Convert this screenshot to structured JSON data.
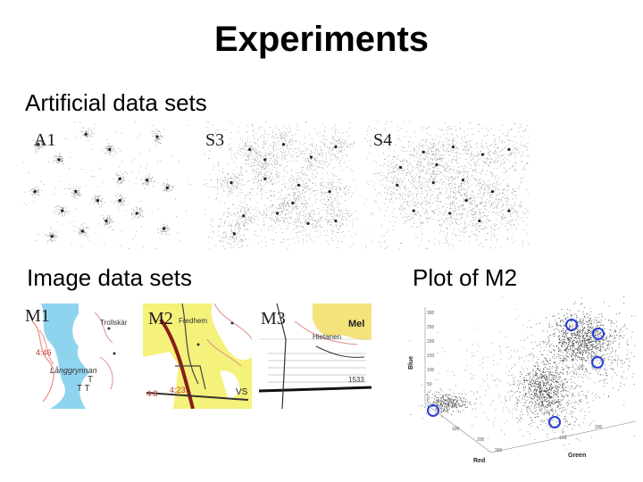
{
  "slide": {
    "title": "Experiments",
    "section_artificial": "Artificial data sets",
    "section_image": "Image data sets",
    "section_plot": "Plot of M2"
  },
  "artificial_panels": [
    {
      "label": "A1"
    },
    {
      "label": "S3"
    },
    {
      "label": "S4"
    }
  ],
  "image_panels": [
    {
      "label": "M1",
      "map_texts": [
        "Trollskär",
        "4:46",
        "Långgrynnan"
      ]
    },
    {
      "label": "M2",
      "map_texts": [
        "Fredhem",
        "4:23",
        "4:8",
        "VS"
      ]
    },
    {
      "label": "M3",
      "map_texts": [
        "Hietanen",
        "Mel",
        "1533"
      ]
    }
  ],
  "plot_m2": {
    "axes": {
      "x": "Red",
      "y": "Blue",
      "z": "Green"
    },
    "blue_ticks": [
      "300",
      "250",
      "200",
      "150",
      "100",
      "50",
      "0"
    ],
    "red_ticks": [
      "100",
      "200",
      "300"
    ],
    "green_ticks": [
      "100",
      "200"
    ],
    "marker_color": "#2a3fd6"
  }
}
